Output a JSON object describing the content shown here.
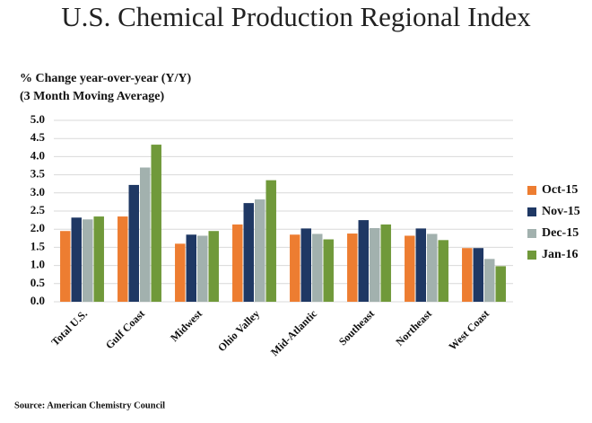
{
  "chart_data": {
    "type": "bar",
    "title": "U.S. Chemical Production Regional Index",
    "subtitle": [
      "% Change year-over-year (Y/Y)",
      "(3 Month Moving Average)"
    ],
    "source": "Source: American Chemistry Council",
    "categories": [
      "Total U.S.",
      "Gulf Coast",
      "Midwest",
      "Ohio Valley",
      "Mid-Atlantic",
      "Southeast",
      "Northeast",
      "West Coast"
    ],
    "series": [
      {
        "name": "Oct-15",
        "color": "#ed7d31",
        "values": [
          1.95,
          2.35,
          1.6,
          2.13,
          1.85,
          1.88,
          1.82,
          1.48
        ]
      },
      {
        "name": "Nov-15",
        "color": "#1f3864",
        "values": [
          2.32,
          3.22,
          1.85,
          2.72,
          2.02,
          2.25,
          2.02,
          1.48
        ]
      },
      {
        "name": "Dec-15",
        "color": "#a2b1ae",
        "values": [
          2.27,
          3.7,
          1.82,
          2.82,
          1.87,
          2.03,
          1.87,
          1.18
        ]
      },
      {
        "name": "Jan-16",
        "color": "#70993a",
        "values": [
          2.35,
          4.33,
          1.95,
          3.35,
          1.72,
          2.13,
          1.7,
          0.98
        ]
      }
    ],
    "ylim": [
      0,
      5
    ],
    "yticks": [
      {
        "value": 0,
        "label": "0.0"
      },
      0.5,
      {
        "value": 1,
        "label": "1.0"
      },
      1.5,
      {
        "value": 2,
        "label": "2.0"
      },
      2.5,
      {
        "value": 3,
        "label": "3.0"
      },
      3.5,
      {
        "value": 4,
        "label": "4.0"
      },
      4.5,
      {
        "value": 5,
        "label": "5.0"
      }
    ],
    "grid": true,
    "legend": "right"
  }
}
